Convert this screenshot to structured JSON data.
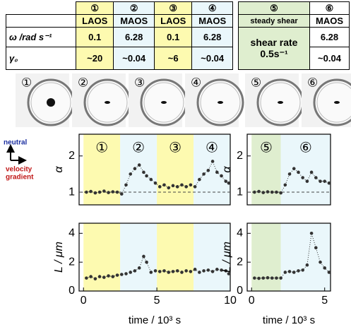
{
  "table_left": {
    "columns": [
      "①",
      "②",
      "③",
      "④"
    ],
    "modes": [
      "LAOS",
      "MAOS",
      "LAOS",
      "MAOS"
    ],
    "row_labels": [
      "ω /rad s⁻¹",
      "γ₀"
    ],
    "rows": [
      [
        "0.1",
        "6.28",
        "0.1",
        "6.28"
      ],
      [
        "~20",
        "~0.04",
        "~6",
        "~0.04"
      ]
    ]
  },
  "table_right": {
    "columns": [
      "⑤",
      "⑥"
    ],
    "modes": [
      "steady shear",
      "MAOS"
    ],
    "steady_value": [
      "shear rate",
      "0.5s⁻¹"
    ],
    "maos_values": [
      "6.28",
      "~0.04"
    ]
  },
  "patterns": [
    "①",
    "②",
    "③",
    "④",
    "⑤",
    "⑥"
  ],
  "axes_legend": {
    "up": "neutral",
    "right": [
      "velocity",
      "gradient"
    ]
  },
  "chart_data": [
    {
      "type": "scatter",
      "ylabel": "α",
      "xlim": [
        -0.3,
        10
      ],
      "ylim": [
        0.65,
        2.6
      ],
      "yticks": [
        1,
        2
      ],
      "reference_line": 1,
      "color": "#333333",
      "regions": [
        {
          "start": 0,
          "end": 2.5,
          "color": "#fdfab0",
          "label": "①"
        },
        {
          "start": 2.5,
          "end": 5,
          "color": "#eaf7fb",
          "label": "②"
        },
        {
          "start": 5,
          "end": 7.5,
          "color": "#fdfab0",
          "label": "③"
        },
        {
          "start": 7.5,
          "end": 10,
          "color": "#eaf7fb",
          "label": "④"
        }
      ],
      "x": [
        0.2,
        0.5,
        0.8,
        1.1,
        1.4,
        1.7,
        2.0,
        2.3,
        2.6,
        2.9,
        3.2,
        3.5,
        3.8,
        4.1,
        4.3,
        4.6,
        4.9,
        5.2,
        5.5,
        5.8,
        6.1,
        6.4,
        6.7,
        7.0,
        7.3,
        7.6,
        7.9,
        8.2,
        8.5,
        8.8,
        9.1,
        9.4,
        9.7,
        9.9
      ],
      "values": [
        1.0,
        1.02,
        0.98,
        1.0,
        1.03,
        0.99,
        1.01,
        1.0,
        0.95,
        1.2,
        1.5,
        1.65,
        1.75,
        1.55,
        1.45,
        1.35,
        1.25,
        1.15,
        1.2,
        1.12,
        1.18,
        1.15,
        1.2,
        1.15,
        1.2,
        1.15,
        1.35,
        1.5,
        1.6,
        1.85,
        1.55,
        1.45,
        1.3,
        1.25
      ]
    },
    {
      "type": "scatter",
      "ylabel": "L / μm",
      "xlabel": "time / 10³ s",
      "xlim": [
        -0.3,
        10
      ],
      "ylim": [
        0,
        4.7
      ],
      "xticks": [
        0,
        5,
        10
      ],
      "yticks": [
        0,
        2,
        4
      ],
      "color": "#333333",
      "regions": [
        {
          "start": 0,
          "end": 2.5,
          "color": "#fdfab0"
        },
        {
          "start": 2.5,
          "end": 5,
          "color": "#eaf7fb"
        },
        {
          "start": 5,
          "end": 7.5,
          "color": "#fdfab0"
        },
        {
          "start": 7.5,
          "end": 10,
          "color": "#eaf7fb"
        }
      ],
      "x": [
        0.2,
        0.5,
        0.8,
        1.1,
        1.4,
        1.7,
        2.0,
        2.3,
        2.6,
        2.9,
        3.2,
        3.5,
        3.8,
        4.1,
        4.3,
        4.6,
        4.9,
        5.2,
        5.5,
        5.8,
        6.1,
        6.4,
        6.7,
        7.0,
        7.3,
        7.6,
        7.9,
        8.2,
        8.5,
        8.8,
        9.1,
        9.4,
        9.7,
        9.9
      ],
      "values": [
        0.9,
        1.0,
        0.85,
        1.0,
        0.95,
        1.05,
        1.0,
        1.1,
        1.15,
        1.2,
        1.3,
        1.4,
        1.6,
        2.4,
        2.0,
        1.3,
        1.4,
        1.35,
        1.4,
        1.3,
        1.35,
        1.4,
        1.3,
        1.4,
        1.35,
        1.5,
        1.3,
        1.4,
        1.45,
        1.35,
        1.5,
        1.45,
        1.4,
        1.2
      ]
    },
    {
      "type": "scatter",
      "ylabel": "α",
      "xlim": [
        -0.3,
        5.4
      ],
      "ylim": [
        0.65,
        2.6
      ],
      "yticks": [
        1,
        2
      ],
      "reference_line": 1,
      "color": "#333333",
      "regions": [
        {
          "start": 0,
          "end": 2,
          "color": "#dfeecf",
          "label": "⑤"
        },
        {
          "start": 2,
          "end": 5.4,
          "color": "#eaf7fb",
          "label": "⑥"
        }
      ],
      "x": [
        0.2,
        0.5,
        0.8,
        1.1,
        1.4,
        1.7,
        2.0,
        2.3,
        2.6,
        2.9,
        3.2,
        3.5,
        3.8,
        4.1,
        4.4,
        4.7,
        5.0,
        5.3
      ],
      "values": [
        1.0,
        1.02,
        0.99,
        1.01,
        1.0,
        1.0,
        0.98,
        1.2,
        1.5,
        1.65,
        1.55,
        1.4,
        1.3,
        1.55,
        1.4,
        1.3,
        1.3,
        1.25
      ]
    },
    {
      "type": "scatter",
      "ylabel": "L / μm",
      "xlabel": "time / 10³ s",
      "xlim": [
        -0.3,
        5.4
      ],
      "ylim": [
        0,
        4.7
      ],
      "xticks": [
        0,
        5
      ],
      "yticks": [
        0,
        2,
        4
      ],
      "color": "#333333",
      "regions": [
        {
          "start": 0,
          "end": 2,
          "color": "#dfeecf"
        },
        {
          "start": 2,
          "end": 5.4,
          "color": "#eaf7fb"
        }
      ],
      "x": [
        0.2,
        0.5,
        0.8,
        1.1,
        1.4,
        1.7,
        2.0,
        2.3,
        2.6,
        2.9,
        3.2,
        3.5,
        3.8,
        4.1,
        4.4,
        4.7,
        5.0,
        5.3
      ],
      "values": [
        0.9,
        0.88,
        0.9,
        0.92,
        0.9,
        0.9,
        0.9,
        1.3,
        1.35,
        1.3,
        1.4,
        1.45,
        1.8,
        4.0,
        3.0,
        2.0,
        1.6,
        1.3
      ]
    }
  ]
}
